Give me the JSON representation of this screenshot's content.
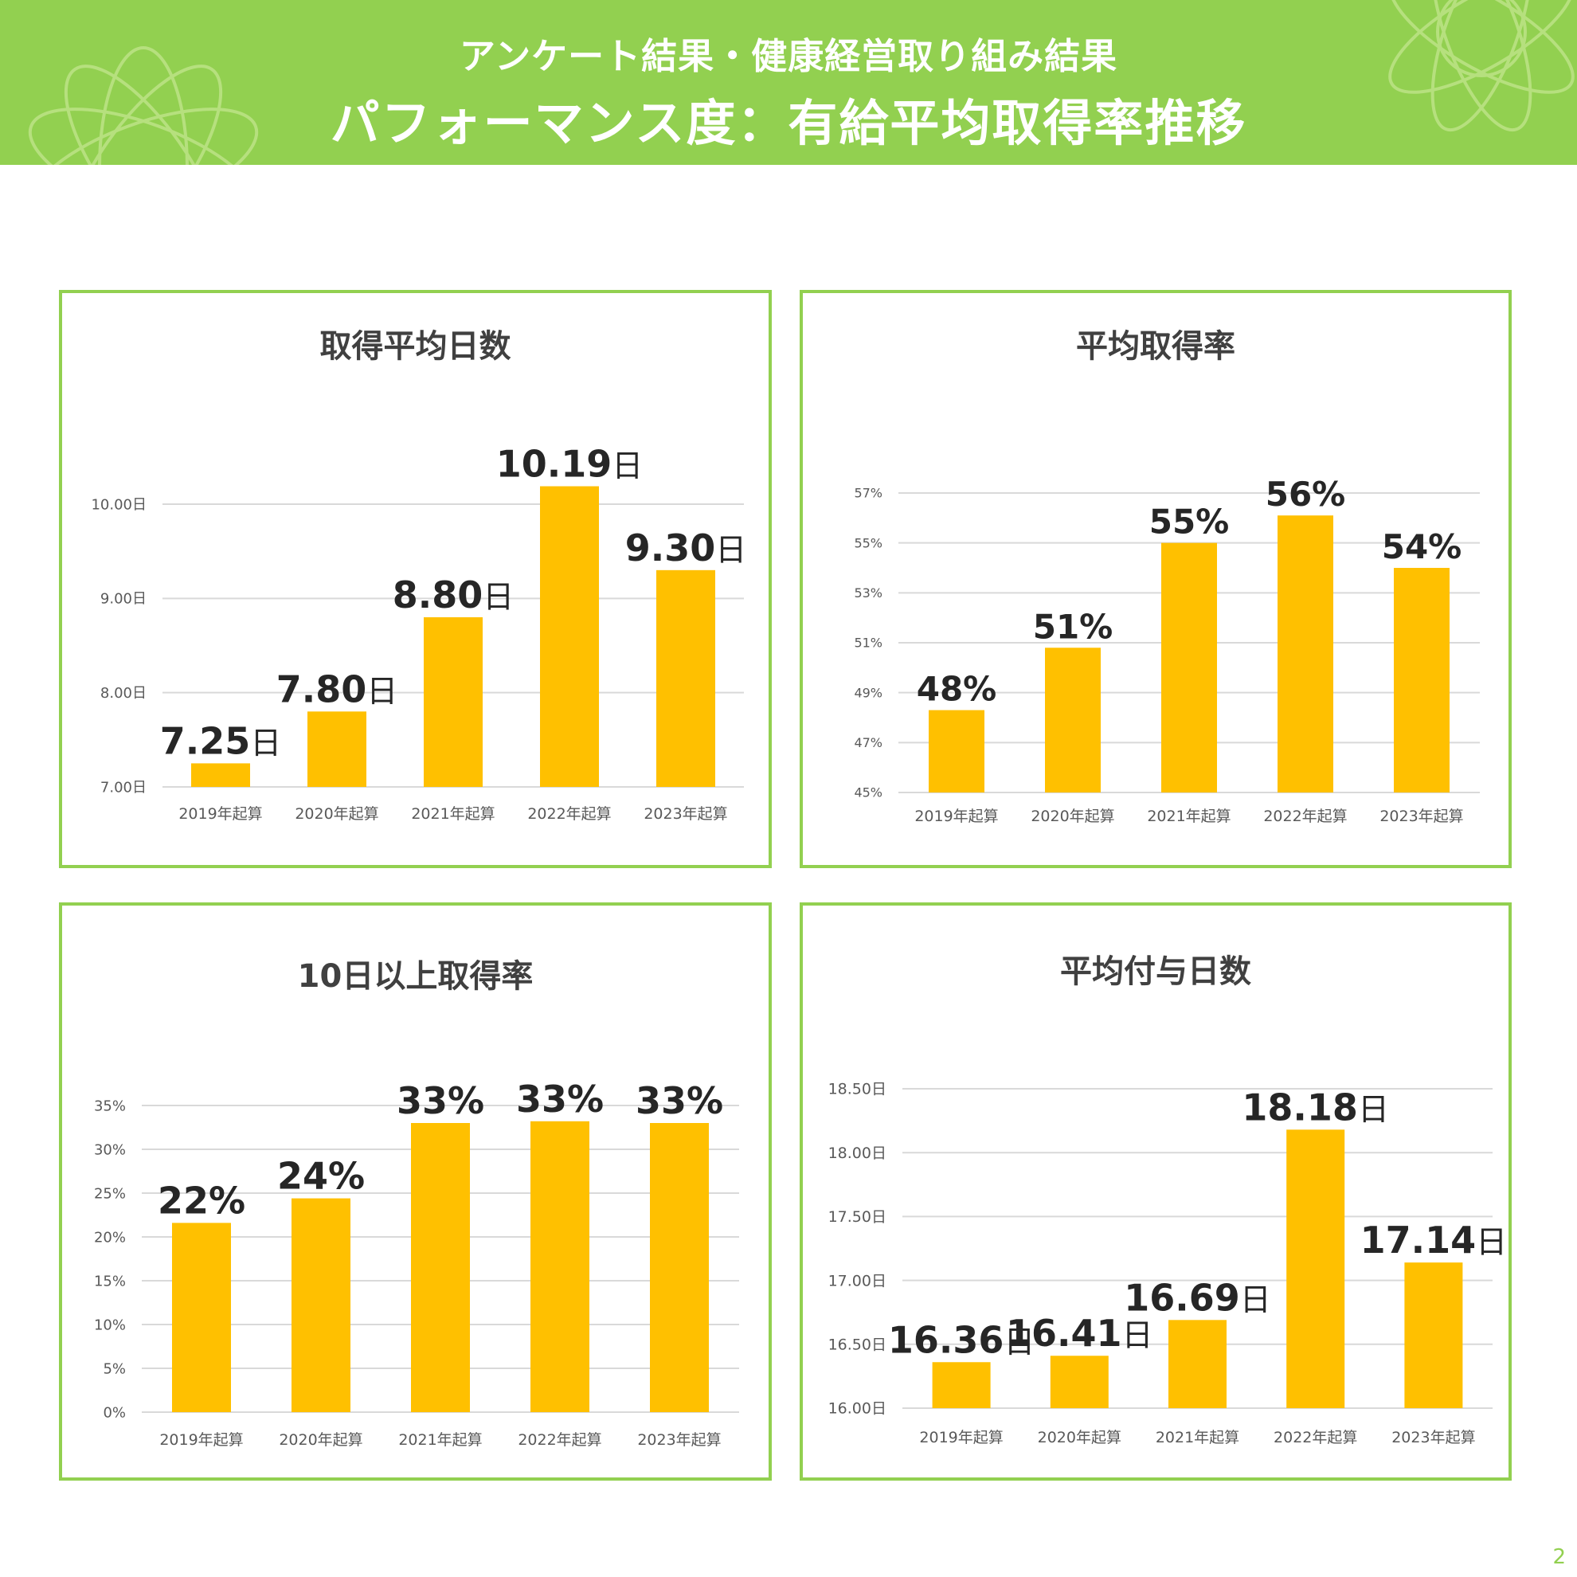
{
  "header": {
    "subtitle": "アンケート結果・健康経営取り組み結果",
    "title": "パフォーマンス度：有給平均取得率推移"
  },
  "page_number": "2",
  "colors": {
    "banner": "#92d050",
    "bar": "#ffc000",
    "panel_border": "#92d050",
    "grid": "#d9d9d9"
  },
  "chart_data": [
    {
      "type": "bar",
      "title": "取得平均日数",
      "categories": [
        "2019年起算",
        "2020年起算",
        "2021年起算",
        "2022年起算",
        "2023年起算"
      ],
      "values": [
        7.25,
        7.8,
        8.8,
        10.19,
        9.3
      ],
      "data_labels": [
        "7.25",
        "7.80",
        "8.80",
        "10.19",
        "9.30"
      ],
      "label_suffix": "日",
      "ylim": [
        7,
        10
      ],
      "yticks": [
        7,
        8,
        9,
        10
      ],
      "ytick_labels": [
        "7.00日",
        "8.00日",
        "9.00日",
        "10.00日"
      ],
      "grid": true
    },
    {
      "type": "bar",
      "title": "平均取得率",
      "categories": [
        "2019年起算",
        "2020年起算",
        "2021年起算",
        "2022年起算",
        "2023年起算"
      ],
      "values": [
        48.3,
        50.8,
        55,
        56.1,
        54
      ],
      "data_labels": [
        "48%",
        "51%",
        "55%",
        "56%",
        "54%"
      ],
      "label_suffix": "",
      "ylim": [
        45,
        57
      ],
      "yticks": [
        45,
        47,
        49,
        51,
        53,
        55,
        57
      ],
      "ytick_labels": [
        "45%",
        "47%",
        "49%",
        "51%",
        "53%",
        "55%",
        "57%"
      ],
      "grid": true
    },
    {
      "type": "bar",
      "title": "10日以上取得率",
      "categories": [
        "2019年起算",
        "2020年起算",
        "2021年起算",
        "2022年起算",
        "2023年起算"
      ],
      "values": [
        21.6,
        24.4,
        33,
        33.2,
        33
      ],
      "data_labels": [
        "22%",
        "24%",
        "33%",
        "33%",
        "33%"
      ],
      "label_suffix": "",
      "ylim": [
        0,
        35
      ],
      "yticks": [
        0,
        5,
        10,
        15,
        20,
        25,
        30,
        35
      ],
      "ytick_labels": [
        "0%",
        "5%",
        "10%",
        "15%",
        "20%",
        "25%",
        "30%",
        "35%"
      ],
      "grid": true
    },
    {
      "type": "bar",
      "title": "平均付与日数",
      "categories": [
        "2019年起算",
        "2020年起算",
        "2021年起算",
        "2022年起算",
        "2023年起算"
      ],
      "values": [
        16.36,
        16.41,
        16.69,
        18.18,
        17.14
      ],
      "data_labels": [
        "16.36",
        "16.41",
        "16.69",
        "18.18",
        "17.14"
      ],
      "label_suffix": "日",
      "ylim": [
        16,
        18.5
      ],
      "yticks": [
        16,
        16.5,
        17,
        17.5,
        18,
        18.5
      ],
      "ytick_labels": [
        "16.00日",
        "16.50日",
        "17.00日",
        "17.50日",
        "18.00日",
        "18.50日"
      ],
      "grid": true
    }
  ]
}
